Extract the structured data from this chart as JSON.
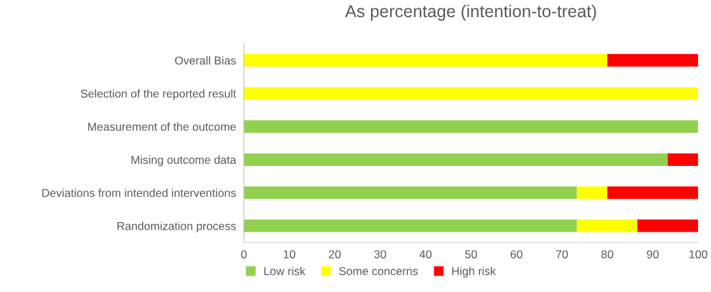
{
  "chart_data": {
    "type": "bar",
    "orientation": "horizontal",
    "stacked": true,
    "title": "As percentage (intention-to-treat)",
    "categories": [
      "Overall Bias",
      "Selection of the reported result",
      "Measurement of the outcome",
      "Mising outcome data",
      "Deviations from intended interventions",
      "Randomization process"
    ],
    "series": [
      {
        "name": "Low risk",
        "color": "#92d050",
        "values": [
          0,
          0,
          100,
          93.3,
          73.3,
          73.3
        ]
      },
      {
        "name": "Some concerns",
        "color": "#ffff00",
        "values": [
          80,
          100,
          0,
          0,
          6.7,
          13.3
        ]
      },
      {
        "name": "High risk",
        "color": "#ff0000",
        "values": [
          20,
          0,
          0,
          6.7,
          20,
          13.4
        ]
      }
    ],
    "xlim": [
      0,
      100
    ],
    "xticks": [
      0,
      10,
      20,
      30,
      40,
      50,
      60,
      70,
      80,
      90,
      100
    ],
    "grid": false,
    "legend": "bottom left"
  }
}
